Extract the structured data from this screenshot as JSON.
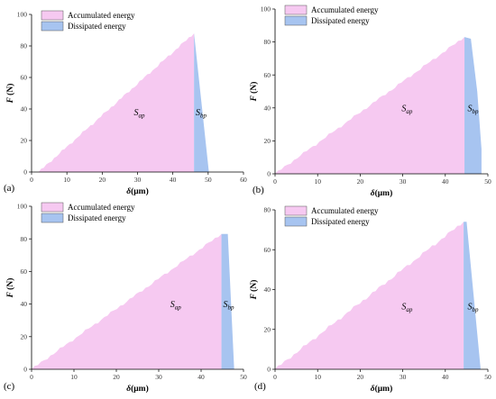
{
  "colors": {
    "accumulated": "#f6c9f1",
    "dissipated": "#a7c4f0",
    "axis": "#000000"
  },
  "chart_data": [
    {
      "type": "area",
      "panel_label": "(a)",
      "xlabel_symbol": "δ",
      "xlabel_unit": "(μm)",
      "ylabel": "F",
      "ylabel_unit": "(N)",
      "xlim": [
        0,
        60
      ],
      "ylim": [
        0,
        100
      ],
      "xticks": [
        0,
        10,
        20,
        30,
        40,
        50,
        60
      ],
      "yticks": [
        0,
        20,
        40,
        60,
        80,
        100
      ],
      "legend": [
        "Accumulated energy",
        "Dissipated energy"
      ],
      "legend_position": "top-left",
      "loading": {
        "x": [
          2,
          46
        ],
        "y": [
          0,
          88
        ]
      },
      "unloading": {
        "x": [
          46,
          50.2
        ],
        "y": [
          88,
          0
        ]
      },
      "label_ap": {
        "main": "S",
        "sub": "ap",
        "x": 30.5,
        "y": 36
      },
      "label_bp": {
        "main": "S",
        "sub": "bp",
        "x": 48,
        "y": 36
      }
    },
    {
      "type": "area",
      "panel_label": "(b)",
      "xlabel_symbol": "δ",
      "xlabel_unit": "(μm)",
      "ylabel": "F",
      "ylabel_unit": "(N)",
      "xlim": [
        0,
        50
      ],
      "ylim": [
        0,
        100
      ],
      "xticks": [
        0,
        10,
        20,
        30,
        40,
        50
      ],
      "yticks": [
        0,
        20,
        40,
        60,
        80,
        100
      ],
      "legend": [
        "Accumulated energy",
        "Dissipated energy"
      ],
      "legend_position": "top-left",
      "loading": {
        "x": [
          0,
          44.5
        ],
        "y": [
          0,
          83
        ]
      },
      "unloading": {
        "x": [
          44.5,
          46,
          47.5,
          48.5,
          48.5
        ],
        "y": [
          83,
          82,
          50,
          15,
          0
        ]
      },
      "label_ap": {
        "main": "S",
        "sub": "ap",
        "x": 31,
        "y": 38
      },
      "label_bp": {
        "main": "S",
        "sub": "bp",
        "x": 46.5,
        "y": 38
      }
    },
    {
      "type": "area",
      "panel_label": "(c)",
      "xlabel_symbol": "δ",
      "xlabel_unit": "(μm)",
      "ylabel": "F",
      "ylabel_unit": "(N)",
      "xlim": [
        0,
        50
      ],
      "ylim": [
        0,
        100
      ],
      "xticks": [
        0,
        10,
        20,
        30,
        40,
        50
      ],
      "yticks": [
        0,
        20,
        40,
        60,
        80,
        100
      ],
      "legend": [
        "Accumulated energy",
        "Dissipated energy"
      ],
      "legend_position": "top-left",
      "loading": {
        "x": [
          0,
          44.8
        ],
        "y": [
          0,
          83
        ]
      },
      "unloading": {
        "x": [
          44.8,
          46.3,
          47.8
        ],
        "y": [
          83,
          83,
          0
        ]
      },
      "label_ap": {
        "main": "S",
        "sub": "ap",
        "x": 34,
        "y": 38
      },
      "label_bp": {
        "main": "S",
        "sub": "bp",
        "x": 46.5,
        "y": 38
      }
    },
    {
      "type": "area",
      "panel_label": "(d)",
      "xlabel_symbol": "δ",
      "xlabel_unit": "(μm)",
      "ylabel": "F",
      "ylabel_unit": "(N)",
      "xlim": [
        0,
        50
      ],
      "ylim": [
        0,
        80
      ],
      "xticks": [
        0,
        10,
        20,
        30,
        40,
        50
      ],
      "yticks": [
        0,
        20,
        40,
        60,
        80
      ],
      "legend": [
        "Accumulated energy",
        "Dissipated energy"
      ],
      "legend_position": "top-left",
      "loading": {
        "x": [
          0,
          44.3
        ],
        "y": [
          0,
          74
        ]
      },
      "unloading": {
        "x": [
          44.3,
          45,
          48.3
        ],
        "y": [
          74,
          74,
          0
        ]
      },
      "label_ap": {
        "main": "S",
        "sub": "ap",
        "x": 31,
        "y": 30
      },
      "label_bp": {
        "main": "S",
        "sub": "bp",
        "x": 46.5,
        "y": 30
      }
    }
  ]
}
